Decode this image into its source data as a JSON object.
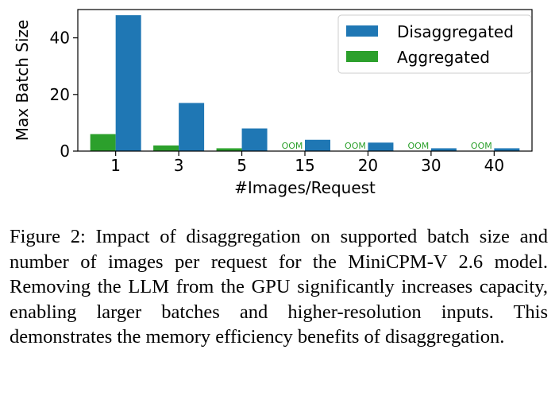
{
  "chart_data": {
    "type": "bar",
    "categories": [
      "1",
      "3",
      "5",
      "15",
      "20",
      "30",
      "40"
    ],
    "series": [
      {
        "name": "Aggregated",
        "color": "#2ca02c",
        "values": [
          6,
          2,
          1,
          0,
          0,
          0,
          0
        ]
      },
      {
        "name": "Disaggregated",
        "color": "#1f77b4",
        "values": [
          48,
          17,
          8,
          4,
          3,
          1,
          1
        ]
      }
    ],
    "bar_labels": [
      "",
      "",
      "",
      "OOM",
      "OOM",
      "OOM",
      "OOM"
    ],
    "bar_label_color": "#2ca02c",
    "title": "",
    "xlabel": "#Images/Request",
    "ylabel": "Max Batch Size",
    "ylim": [
      0,
      50
    ],
    "yticks": [
      0,
      20,
      40
    ],
    "legend": {
      "position": "top-right",
      "entries": [
        "Disaggregated",
        "Aggregated"
      ]
    },
    "grid": false
  },
  "caption": "Figure 2: Impact of disaggregation on supported batch size and number of images per request for the MiniCPM-V 2.6 model. Removing the LLM from the GPU significantly increases capacity, enabling larger batches and higher-resolution inputs. This demonstrates the memory efficiency benefits of disaggregation."
}
